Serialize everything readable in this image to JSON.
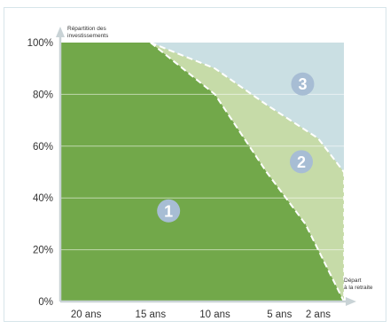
{
  "chart_data": {
    "type": "area",
    "title": "",
    "ylabel": "Répartition des investissements",
    "xlabel": "Départ à la retraite",
    "ylabel_lines": [
      "Répartition des",
      "investissements"
    ],
    "xlabel_lines": [
      "Départ",
      "à la retraite"
    ],
    "ylim": [
      0,
      100
    ],
    "xlim": [
      22,
      0
    ],
    "y_ticks": [
      {
        "value": 0,
        "label": "0%"
      },
      {
        "value": 20,
        "label": "20%"
      },
      {
        "value": 40,
        "label": "40%"
      },
      {
        "value": 60,
        "label": "60%"
      },
      {
        "value": 80,
        "label": "80%"
      },
      {
        "value": 100,
        "label": "100%"
      }
    ],
    "x_ticks": [
      {
        "value": 20,
        "label": "20 ans"
      },
      {
        "value": 15,
        "label": "15 ans"
      },
      {
        "value": 10,
        "label": "10 ans"
      },
      {
        "value": 5,
        "label": "5 ans"
      },
      {
        "value": 2,
        "label": "2 ans"
      }
    ],
    "series": [
      {
        "name": "1",
        "color": "#72a84a",
        "points": [
          [
            22,
            100
          ],
          [
            15,
            100
          ],
          [
            10,
            80
          ],
          [
            6,
            50
          ],
          [
            3,
            30
          ],
          [
            0,
            0
          ]
        ]
      },
      {
        "name": "2",
        "color": "#c6dba8",
        "points": [
          [
            22,
            100
          ],
          [
            15,
            100
          ],
          [
            10,
            90
          ],
          [
            6,
            76
          ],
          [
            2,
            63
          ],
          [
            0,
            50
          ]
        ]
      },
      {
        "name": "3",
        "color": "#cadfe3",
        "points": [
          [
            22,
            100
          ],
          [
            0,
            100
          ]
        ]
      }
    ],
    "badges": [
      {
        "label": "1",
        "x": 13.6,
        "y": 35
      },
      {
        "label": "2",
        "x": 3.3,
        "y": 54
      },
      {
        "label": "3",
        "x": 3.2,
        "y": 84
      }
    ],
    "grid": true,
    "colors": {
      "badge": "#a7bdd4",
      "grid": "#ffffff",
      "dash": "#ffffff",
      "axis": "#c9d3d6"
    }
  }
}
